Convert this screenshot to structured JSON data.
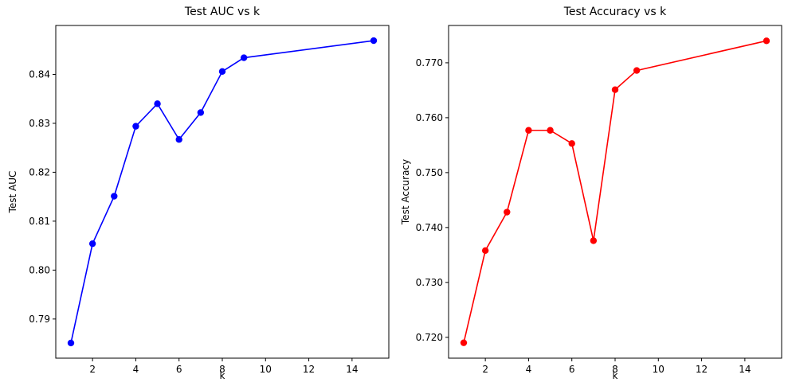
{
  "chart_data": [
    {
      "type": "line",
      "title": "Test AUC vs k",
      "xlabel": "k",
      "ylabel": "Test AUC",
      "color": "#0000ff",
      "x": [
        1,
        2,
        3,
        4,
        5,
        6,
        7,
        8,
        9,
        15
      ],
      "y": [
        0.7851,
        0.8054,
        0.8151,
        0.8294,
        0.834,
        0.8267,
        0.8322,
        0.8406,
        0.8434,
        0.8469
      ],
      "xlim": [
        0.3,
        15.7
      ],
      "ylim": [
        0.782,
        0.85
      ],
      "xticks": [
        2,
        4,
        6,
        8,
        10,
        12,
        14
      ],
      "xtick_labels": [
        "2",
        "4",
        "6",
        "8",
        "10",
        "12",
        "14"
      ],
      "yticks": [
        0.79,
        0.8,
        0.81,
        0.82,
        0.83,
        0.84
      ],
      "ytick_labels": [
        "0.79",
        "0.80",
        "0.81",
        "0.82",
        "0.83",
        "0.84"
      ]
    },
    {
      "type": "line",
      "title": "Test Accuracy vs k",
      "xlabel": "k",
      "ylabel": "Test Accuracy",
      "color": "#ff0000",
      "x": [
        1,
        2,
        3,
        4,
        5,
        6,
        7,
        8,
        9,
        15
      ],
      "y": [
        0.719,
        0.7358,
        0.7428,
        0.7577,
        0.7577,
        0.7553,
        0.7376,
        0.7651,
        0.7686,
        0.774
      ],
      "xlim": [
        0.3,
        15.7
      ],
      "ylim": [
        0.7162,
        0.7768
      ],
      "xticks": [
        2,
        4,
        6,
        8,
        10,
        12,
        14
      ],
      "xtick_labels": [
        "2",
        "4",
        "6",
        "8",
        "10",
        "12",
        "14"
      ],
      "yticks": [
        0.72,
        0.73,
        0.74,
        0.75,
        0.76,
        0.77
      ],
      "ytick_labels": [
        "0.720",
        "0.730",
        "0.740",
        "0.750",
        "0.760",
        "0.770"
      ]
    }
  ]
}
